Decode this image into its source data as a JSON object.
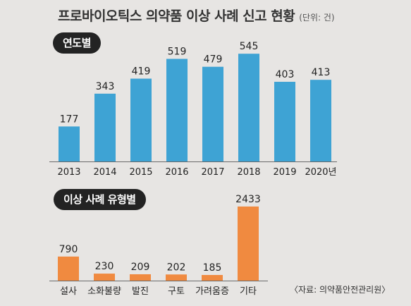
{
  "title": "프로바이오틱스 의약품 이상 사례 신고 현황",
  "unit": "(단위: 건)",
  "source": "〈자료: 의약품안전관리원〉",
  "colors": {
    "bar_year": "#3ea3d4",
    "bar_type": "#f08a40",
    "baseline": "#6a6a6a",
    "pill": "#232323"
  },
  "chart_data": [
    {
      "type": "bar",
      "title": "연도별",
      "categories": [
        "2013",
        "2014",
        "2015",
        "2016",
        "2017",
        "2018",
        "2019",
        "2020년"
      ],
      "values": [
        177,
        343,
        419,
        519,
        479,
        545,
        403,
        413
      ],
      "xlabel": "",
      "ylabel": "",
      "ylim": [
        0,
        560
      ],
      "grid": false
    },
    {
      "type": "bar",
      "title": "이상 사례 유형별",
      "categories": [
        "설사",
        "소화불량",
        "발진",
        "구토",
        "가려움증",
        "기타"
      ],
      "values": [
        790,
        230,
        209,
        202,
        185,
        2433
      ],
      "xlabel": "",
      "ylabel": "",
      "ylim": [
        0,
        2500
      ],
      "grid": false
    }
  ]
}
